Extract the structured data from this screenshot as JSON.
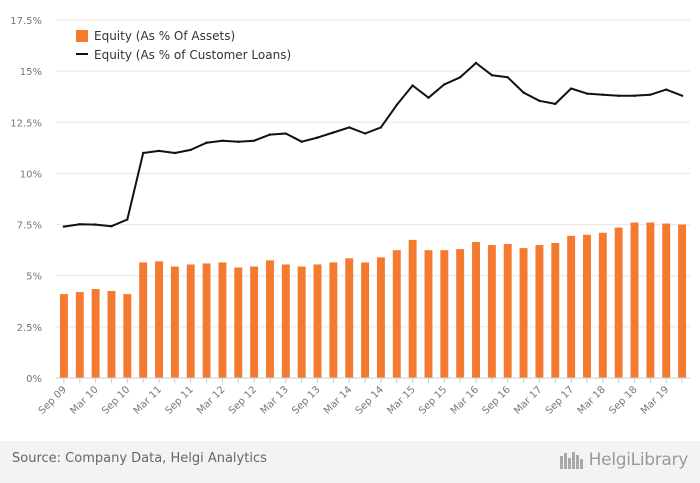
{
  "chart_data": {
    "type": "bar",
    "categories": [
      "Sep 09",
      "Dec 09",
      "Mar 10",
      "Jun 10",
      "Sep 10",
      "Dec 10",
      "Mar 11",
      "Jun 11",
      "Sep 11",
      "Dec 11",
      "Mar 12",
      "Jun 12",
      "Sep 12",
      "Dec 12",
      "Mar 13",
      "Jun 13",
      "Sep 13",
      "Dec 13",
      "Mar 14",
      "Jun 14",
      "Sep 14",
      "Dec 14",
      "Mar 15",
      "Jun 15",
      "Sep 15",
      "Dec 15",
      "Mar 16",
      "Jun 16",
      "Sep 16",
      "Dec 16",
      "Mar 17",
      "Jun 17",
      "Sep 17",
      "Dec 17",
      "Mar 18",
      "Jun 18",
      "Sep 18",
      "Dec 18",
      "Mar 19",
      "Jun 19"
    ],
    "x_tick_labels": [
      "Sep 09",
      "Mar 10",
      "Sep 10",
      "Mar 11",
      "Sep 11",
      "Mar 12",
      "Sep 12",
      "Mar 13",
      "Sep 13",
      "Mar 14",
      "Sep 14",
      "Mar 15",
      "Sep 15",
      "Mar 16",
      "Sep 16",
      "Mar 17",
      "Sep 17",
      "Mar 18",
      "Sep 18",
      "Mar 19"
    ],
    "y_tick_labels": [
      "0%",
      "2.5%",
      "5%",
      "7.5%",
      "10%",
      "12.5%",
      "15%",
      "17.5%"
    ],
    "ylim": [
      0,
      17.5
    ],
    "grid": true,
    "legend_position": "top-left",
    "series": [
      {
        "name": "Equity (As % Of Assets)",
        "type": "bar",
        "color": "#f47a30",
        "values": [
          4.1,
          4.2,
          4.35,
          4.25,
          4.1,
          5.65,
          5.7,
          5.45,
          5.55,
          5.6,
          5.65,
          5.4,
          5.45,
          5.75,
          5.55,
          5.45,
          5.55,
          5.65,
          5.85,
          5.65,
          5.9,
          6.25,
          6.75,
          6.25,
          6.25,
          6.3,
          6.65,
          6.5,
          6.55,
          6.35,
          6.5,
          6.6,
          6.95,
          7.0,
          7.1,
          7.35,
          7.6,
          7.6,
          7.55,
          7.5
        ]
      },
      {
        "name": "Equity (As % of Customer Loans)",
        "type": "line",
        "color": "#111111",
        "values": [
          7.4,
          7.52,
          7.5,
          7.42,
          7.75,
          11.0,
          11.1,
          11.0,
          11.15,
          11.5,
          11.6,
          11.55,
          11.6,
          11.9,
          11.95,
          11.55,
          11.75,
          12.0,
          12.25,
          11.95,
          12.25,
          13.35,
          14.3,
          13.7,
          14.35,
          14.7,
          15.4,
          14.8,
          14.7,
          13.95,
          13.55,
          13.4,
          14.15,
          13.9,
          13.85,
          13.8,
          13.8,
          13.85,
          14.1,
          13.8
        ]
      }
    ]
  },
  "footer": {
    "source": "Source: Company Data, Helgi Analytics",
    "brand": "HelgiLibrary"
  }
}
